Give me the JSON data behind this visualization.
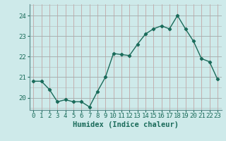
{
  "x": [
    0,
    1,
    2,
    3,
    4,
    5,
    6,
    7,
    8,
    9,
    10,
    11,
    12,
    13,
    14,
    15,
    16,
    17,
    18,
    19,
    20,
    21,
    22,
    23
  ],
  "y": [
    20.8,
    20.8,
    20.4,
    19.8,
    19.9,
    19.8,
    19.8,
    19.55,
    20.3,
    21.0,
    22.15,
    22.1,
    22.05,
    22.6,
    23.1,
    23.35,
    23.5,
    23.35,
    24.0,
    23.35,
    22.75,
    21.9,
    21.75,
    20.9
  ],
  "line_color": "#1a6b5a",
  "marker": "D",
  "markersize": 2.2,
  "linewidth": 1.0,
  "xlabel": "Humidex (Indice chaleur)",
  "ylim": [
    19.4,
    24.55
  ],
  "xlim": [
    -0.5,
    23.5
  ],
  "yticks": [
    20,
    21,
    22,
    23,
    24
  ],
  "xticks": [
    0,
    1,
    2,
    3,
    4,
    5,
    6,
    7,
    8,
    9,
    10,
    11,
    12,
    13,
    14,
    15,
    16,
    17,
    18,
    19,
    20,
    21,
    22,
    23
  ],
  "bg_color": "#ceeaea",
  "vgrid_color": "#c09898",
  "hgrid_color": "#b0b8b8",
  "xlabel_fontsize": 7.5,
  "tick_fontsize": 6.5,
  "tick_color": "#1a6b5a"
}
